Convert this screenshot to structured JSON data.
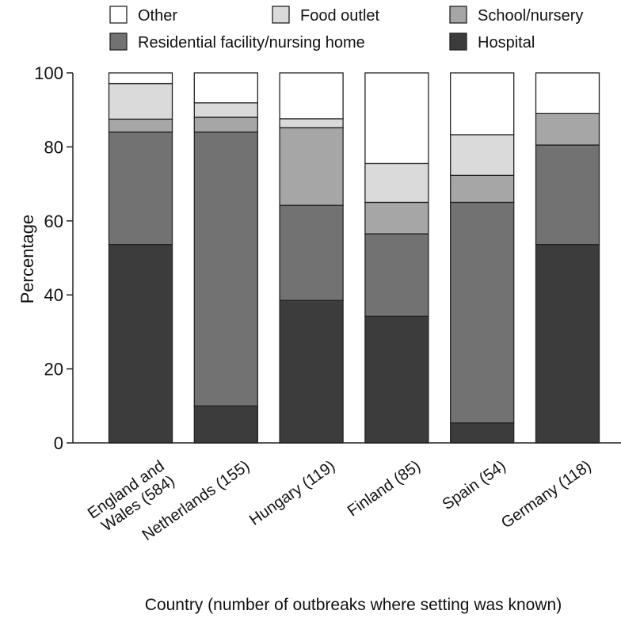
{
  "chart_data": {
    "type": "bar",
    "stacked": true,
    "ylabel": "Percentage",
    "xlabel": "Country (number of outbreaks where setting was known)",
    "ylim": [
      0,
      100
    ],
    "yticks": [
      0,
      20,
      40,
      60,
      80,
      100
    ],
    "legend_placement": "top",
    "categories": [
      "England and Wales (584)",
      "Netherlands (155)",
      "Hungary (119)",
      "Finland (85)",
      "Spain (54)",
      "Germany (118)"
    ],
    "category_lines": [
      [
        "England and",
        "Wales (584)"
      ],
      [
        "Netherlands (155)"
      ],
      [
        "Hungary (119)"
      ],
      [
        "Finland (85)"
      ],
      [
        "Spain (54)"
      ],
      [
        "Germany (118)"
      ]
    ],
    "series": [
      {
        "name": "Hospital",
        "color": "#3c3c3c",
        "values": [
          53.6,
          10.0,
          38.5,
          34.2,
          5.4,
          53.6
        ]
      },
      {
        "name": "Residential facility/nursing home",
        "color": "#727272",
        "values": [
          30.4,
          74.0,
          25.7,
          22.3,
          59.6,
          26.9
        ]
      },
      {
        "name": "School/nursery",
        "color": "#a6a6a6",
        "values": [
          3.5,
          4.0,
          21.0,
          8.5,
          7.3,
          8.5
        ]
      },
      {
        "name": "Food outlet",
        "color": "#dadada",
        "values": [
          9.6,
          3.9,
          2.4,
          10.5,
          11.0,
          0
        ]
      },
      {
        "name": "Other",
        "color": "#ffffff",
        "values": [
          2.9,
          8.1,
          12.4,
          24.5,
          16.7,
          11.0
        ]
      }
    ],
    "legend_order": [
      "Other",
      "Food outlet",
      "School/nursery",
      "Residential facility/nursing home",
      "Hospital"
    ]
  }
}
